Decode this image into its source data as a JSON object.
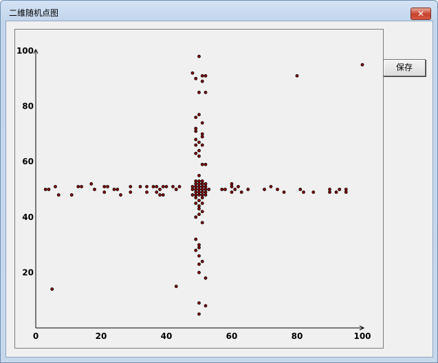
{
  "window": {
    "title": "二维随机点图",
    "close_symbol": "✕"
  },
  "toolbar": {
    "save_label": "保存"
  },
  "colors": {
    "point_fill": "#8b0000",
    "point_stroke": "#000000",
    "axis": "#000000"
  },
  "chart_data": {
    "type": "scatter",
    "title": "",
    "xlabel": "",
    "ylabel": "",
    "xlim": [
      0,
      100
    ],
    "ylim": [
      0,
      100
    ],
    "x_ticks": [
      "0",
      "20",
      "40",
      "60",
      "80",
      "100"
    ],
    "y_ticks": [
      "20",
      "40",
      "60",
      "80",
      "100"
    ],
    "grid": false,
    "points": [
      [
        50,
        98
      ],
      [
        48,
        92
      ],
      [
        49,
        90
      ],
      [
        51,
        91
      ],
      [
        52,
        91
      ],
      [
        51,
        89
      ],
      [
        50,
        85
      ],
      [
        52,
        85
      ],
      [
        80,
        91
      ],
      [
        100,
        95
      ],
      [
        50,
        77
      ],
      [
        49,
        76
      ],
      [
        51,
        74
      ],
      [
        49,
        72
      ],
      [
        49,
        71
      ],
      [
        51,
        70
      ],
      [
        51,
        69
      ],
      [
        49,
        68
      ],
      [
        50,
        67
      ],
      [
        51,
        66
      ],
      [
        49,
        66
      ],
      [
        50,
        64
      ],
      [
        49,
        63
      ],
      [
        50,
        62
      ],
      [
        51,
        59
      ],
      [
        52,
        59
      ],
      [
        50,
        55
      ],
      [
        49,
        53
      ],
      [
        50,
        53
      ],
      [
        51,
        53
      ],
      [
        49,
        52
      ],
      [
        50,
        52
      ],
      [
        51,
        52
      ],
      [
        52,
        52
      ],
      [
        48,
        51
      ],
      [
        49,
        51
      ],
      [
        50,
        51
      ],
      [
        51,
        51
      ],
      [
        52,
        51
      ],
      [
        48,
        50
      ],
      [
        49,
        50
      ],
      [
        50,
        50
      ],
      [
        51,
        50
      ],
      [
        52,
        50
      ],
      [
        53,
        50
      ],
      [
        49,
        49
      ],
      [
        50,
        49
      ],
      [
        51,
        49
      ],
      [
        52,
        49
      ],
      [
        48,
        48
      ],
      [
        49,
        48
      ],
      [
        50,
        48
      ],
      [
        51,
        48
      ],
      [
        52,
        48
      ],
      [
        49,
        47
      ],
      [
        51,
        47
      ],
      [
        50,
        46
      ],
      [
        49,
        45
      ],
      [
        51,
        45
      ],
      [
        50,
        44
      ],
      [
        50,
        43
      ],
      [
        51,
        42
      ],
      [
        49,
        40
      ],
      [
        50,
        41
      ],
      [
        51,
        38
      ],
      [
        49,
        32
      ],
      [
        50,
        30
      ],
      [
        50,
        29
      ],
      [
        49,
        28
      ],
      [
        50,
        26
      ],
      [
        51,
        24
      ],
      [
        50,
        23
      ],
      [
        50,
        20
      ],
      [
        52,
        18
      ],
      [
        43,
        15
      ],
      [
        50,
        9
      ],
      [
        52,
        8
      ],
      [
        50,
        5
      ],
      [
        5,
        14
      ],
      [
        3,
        50
      ],
      [
        4,
        50
      ],
      [
        6,
        51
      ],
      [
        7,
        48
      ],
      [
        11,
        48
      ],
      [
        13,
        51
      ],
      [
        14,
        51
      ],
      [
        17,
        52
      ],
      [
        18,
        50
      ],
      [
        21,
        51
      ],
      [
        22,
        51
      ],
      [
        21,
        49
      ],
      [
        24,
        50
      ],
      [
        25,
        50
      ],
      [
        26,
        48
      ],
      [
        29,
        51
      ],
      [
        29,
        49
      ],
      [
        32,
        51
      ],
      [
        34,
        51
      ],
      [
        34,
        49
      ],
      [
        36,
        51
      ],
      [
        37,
        51
      ],
      [
        37,
        49
      ],
      [
        38,
        50
      ],
      [
        39,
        51
      ],
      [
        40,
        51
      ],
      [
        38,
        48
      ],
      [
        39,
        48
      ],
      [
        42,
        51
      ],
      [
        43,
        50
      ],
      [
        44,
        51
      ],
      [
        57,
        50
      ],
      [
        58,
        50
      ],
      [
        60,
        52
      ],
      [
        60,
        51
      ],
      [
        61,
        50
      ],
      [
        62,
        51
      ],
      [
        60,
        49
      ],
      [
        63,
        49
      ],
      [
        65,
        50
      ],
      [
        70,
        50
      ],
      [
        72,
        51
      ],
      [
        74,
        50
      ],
      [
        76,
        49
      ],
      [
        81,
        50
      ],
      [
        82,
        49
      ],
      [
        85,
        49
      ],
      [
        90,
        50
      ],
      [
        90,
        49
      ],
      [
        92,
        49
      ],
      [
        93,
        50
      ],
      [
        95,
        50
      ],
      [
        95,
        49
      ]
    ]
  }
}
